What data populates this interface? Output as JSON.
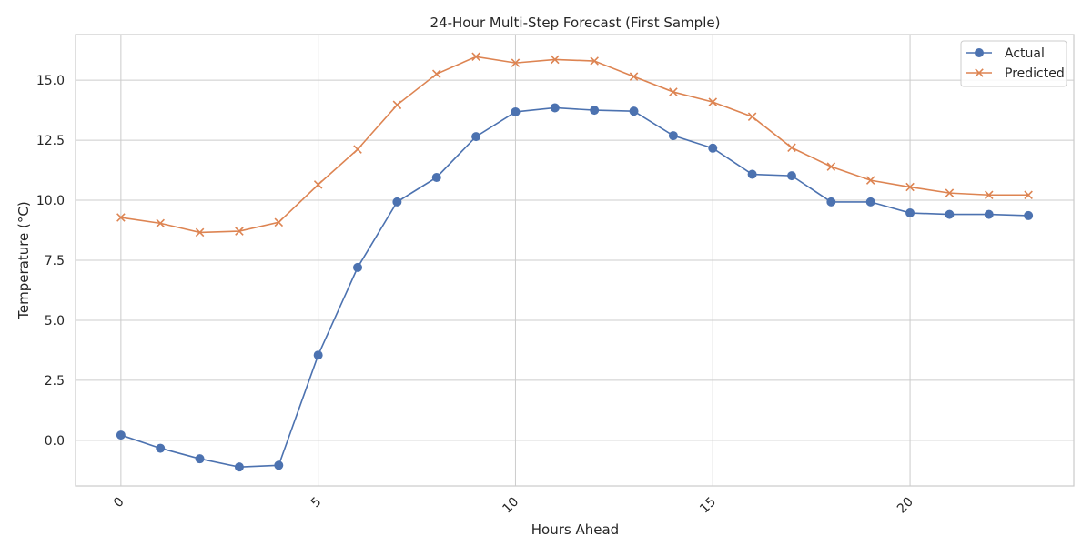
{
  "chart_data": {
    "type": "line",
    "title": "24-Hour Multi-Step Forecast (First Sample)",
    "xlabel": "Hours Ahead",
    "ylabel": "Temperature (°C)",
    "xlim": [
      -1.15,
      24.15
    ],
    "ylim": [
      -1.9,
      16.9
    ],
    "x_ticks": [
      0,
      5,
      10,
      15,
      20
    ],
    "x_tick_labels": [
      "0",
      "5",
      "10",
      "15",
      "20"
    ],
    "y_ticks": [
      0.0,
      2.5,
      5.0,
      7.5,
      10.0,
      12.5,
      15.0
    ],
    "y_tick_labels": [
      "0.0",
      "2.5",
      "5.0",
      "7.5",
      "10.0",
      "12.5",
      "15.0"
    ],
    "grid": true,
    "legend": "top-right",
    "x": [
      0,
      1,
      2,
      3,
      4,
      5,
      6,
      7,
      8,
      9,
      10,
      11,
      12,
      13,
      14,
      15,
      16,
      17,
      18,
      19,
      20,
      21,
      22,
      23
    ],
    "series": [
      {
        "name": "Actual",
        "color": "#4c72b0",
        "marker": "circle",
        "values": [
          0.22,
          -0.33,
          -0.77,
          -1.11,
          -1.04,
          3.55,
          7.2,
          9.93,
          10.95,
          12.65,
          13.68,
          13.85,
          13.75,
          13.71,
          12.69,
          12.17,
          11.08,
          11.02,
          9.93,
          9.93,
          9.47,
          9.41,
          9.41,
          9.36
        ]
      },
      {
        "name": "Predicted",
        "color": "#dd8452",
        "marker": "x",
        "values": [
          9.28,
          9.04,
          8.66,
          8.71,
          9.08,
          10.65,
          12.12,
          13.97,
          15.26,
          15.98,
          15.72,
          15.86,
          15.8,
          15.15,
          14.51,
          14.09,
          13.48,
          12.19,
          11.4,
          10.83,
          10.55,
          10.3,
          10.22,
          10.22
        ]
      }
    ]
  }
}
